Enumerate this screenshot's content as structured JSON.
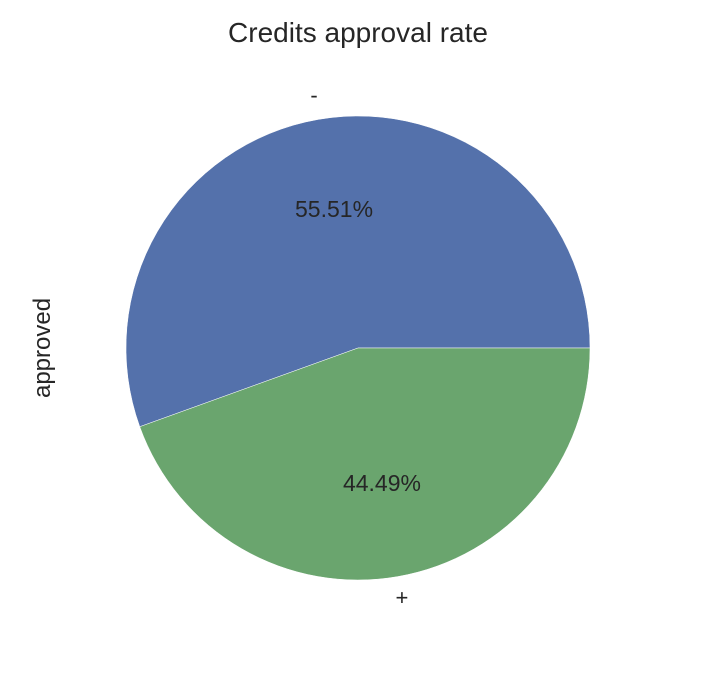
{
  "chart_data": {
    "type": "pie",
    "title": "Credits approval rate",
    "ylabel": "approved",
    "slices": [
      {
        "label": "-",
        "value": 55.51,
        "pct_label": "55.51%",
        "color": "#5471AB"
      },
      {
        "label": "+",
        "value": 44.49,
        "pct_label": "44.49%",
        "color": "#6AA56E"
      }
    ],
    "start_angle": 0,
    "direction": "counterclockwise",
    "legend": "none"
  }
}
